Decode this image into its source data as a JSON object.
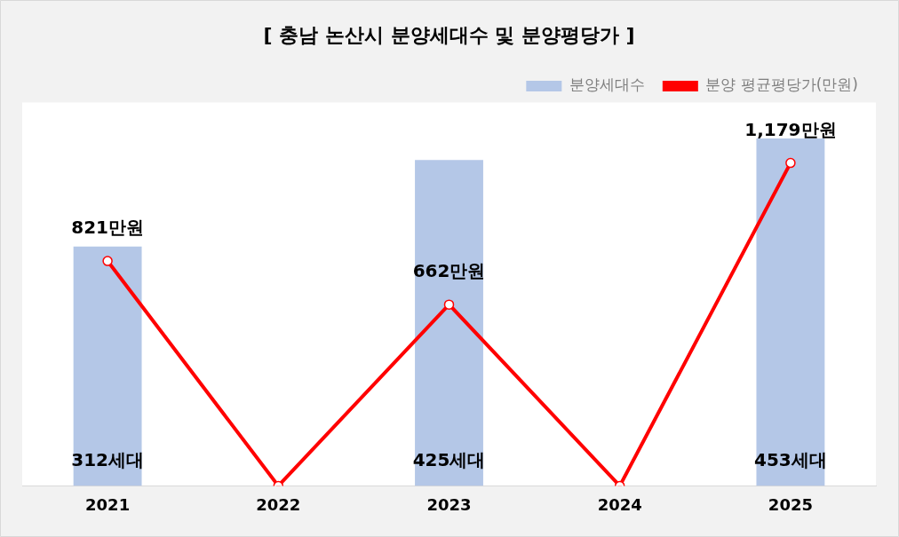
{
  "chart_data": {
    "type": "bar",
    "title": "[ 충남 논산시 분양세대수 및 분양평당가 ]",
    "categories": [
      "2021",
      "2022",
      "2023",
      "2024",
      "2025"
    ],
    "series": [
      {
        "name": "분양세대수",
        "color": "#b4c7e7",
        "values": [
          312,
          null,
          425,
          null,
          453
        ],
        "value_labels": [
          "312세대",
          null,
          "425세대",
          null,
          "453세대"
        ]
      },
      {
        "name": "분양 평균평당가(만원)",
        "type": "line",
        "axis": "y2",
        "color": "#ff0000",
        "marker": "circle",
        "values": [
          821,
          0,
          662,
          0,
          1179
        ],
        "value_labels": [
          "821만원",
          null,
          "662만원",
          null,
          "1,179만원"
        ]
      }
    ],
    "ylim": [
      0,
      500
    ],
    "y2lim": [
      0,
      1400
    ],
    "tick_labels": "x",
    "grid": false,
    "legend": "top right"
  }
}
